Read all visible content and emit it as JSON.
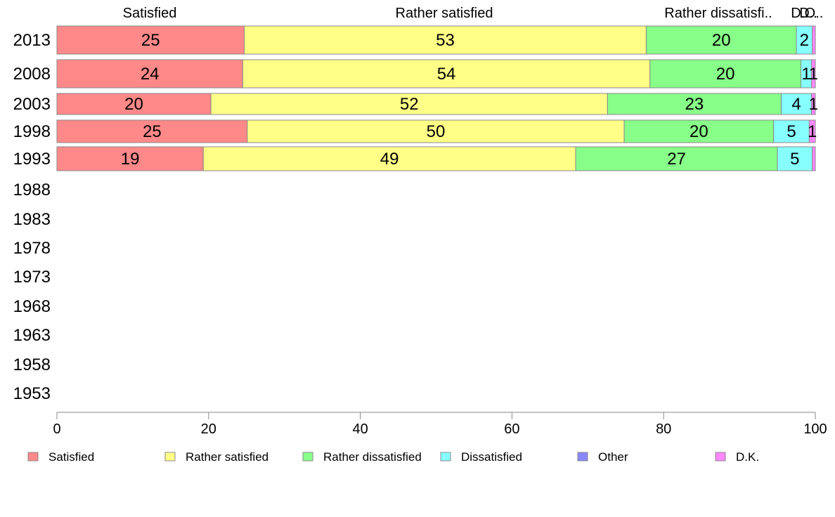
{
  "chart_data": {
    "type": "bar",
    "orientation": "horizontal",
    "stacked": true,
    "categories": [
      "2013",
      "2008",
      "2003",
      "1998",
      "1993",
      "1988",
      "1983",
      "1978",
      "1973",
      "1968",
      "1963",
      "1958",
      "1953"
    ],
    "series": [
      {
        "name": "Satisfied",
        "color": "#ff8888",
        "values": [
          24.7,
          24.5,
          20.3,
          25.1,
          19.3,
          null,
          null,
          null,
          null,
          null,
          null,
          null,
          null
        ],
        "labels": [
          "25",
          "24",
          "20",
          "25",
          "19",
          "",
          "",
          "",
          "",
          "",
          "",
          "",
          ""
        ]
      },
      {
        "name": "Rather satisfied",
        "color": "#ffff88",
        "values": [
          53.0,
          53.7,
          52.3,
          49.7,
          49.1,
          null,
          null,
          null,
          null,
          null,
          null,
          null,
          null
        ],
        "labels": [
          "53",
          "54",
          "52",
          "50",
          "49",
          "",
          "",
          "",
          "",
          "",
          "",
          "",
          ""
        ]
      },
      {
        "name": "Rather dissatisfied",
        "color": "#88ff88",
        "values": [
          19.8,
          19.9,
          22.9,
          19.7,
          26.6,
          null,
          null,
          null,
          null,
          null,
          null,
          null,
          null
        ],
        "labels": [
          "20",
          "20",
          "23",
          "20",
          "27",
          "",
          "",
          "",
          "",
          "",
          "",
          "",
          ""
        ]
      },
      {
        "name": "Dissatisfied",
        "color": "#88ffff",
        "values": [
          2.1,
          1.4,
          4.0,
          4.7,
          4.6,
          null,
          null,
          null,
          null,
          null,
          null,
          null,
          null
        ],
        "labels": [
          "2",
          "1",
          "4",
          "5",
          "5",
          "",
          "",
          "",
          "",
          "",
          "",
          "",
          ""
        ]
      },
      {
        "name": "Other",
        "color": "#8888ff",
        "values": [
          0.0,
          0.0,
          0.0,
          0.0,
          0.0,
          null,
          null,
          null,
          null,
          null,
          null,
          null,
          null
        ],
        "labels": [
          "",
          "",
          "",
          "",
          "",
          "",
          "",
          "",
          "",
          "",
          "",
          "",
          ""
        ]
      },
      {
        "name": "D.K.",
        "color": "#ff88ff",
        "values": [
          0.4,
          0.5,
          0.5,
          0.8,
          0.4,
          null,
          null,
          null,
          null,
          null,
          null,
          null,
          null
        ],
        "labels": [
          "",
          "1",
          "1",
          "1",
          "",
          "",
          "",
          "",
          "",
          "",
          "",
          "",
          ""
        ]
      }
    ],
    "top_labels": [
      "Satisfied",
      "Rather satisfied",
      "Rather dissatisfi..",
      "D..",
      "D..",
      "O.."
    ],
    "xlim": [
      0,
      100
    ],
    "xticks": [
      "0",
      "20",
      "40",
      "60",
      "80",
      "100"
    ],
    "grid": false,
    "legend_position": "bottom"
  }
}
